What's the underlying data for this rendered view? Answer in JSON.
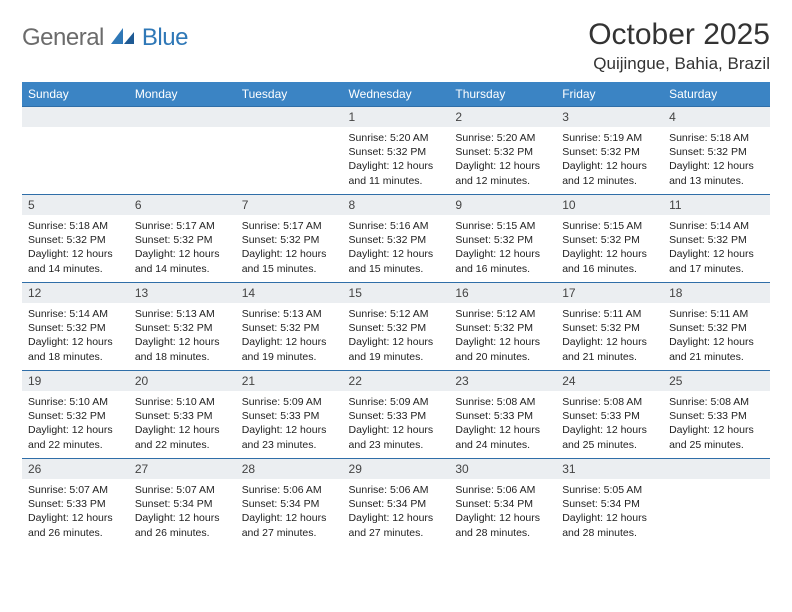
{
  "brand": {
    "word1": "General",
    "word2": "Blue"
  },
  "title": "October 2025",
  "location": "Quijingue, Bahia, Brazil",
  "colors": {
    "header_bg": "#3b84c4",
    "header_fg": "#ffffff",
    "daynum_bg": "#ebeef1",
    "rule": "#2f6ea8",
    "brand_gray": "#6b6b6b",
    "brand_blue": "#2f78b7"
  },
  "weekdays": [
    "Sunday",
    "Monday",
    "Tuesday",
    "Wednesday",
    "Thursday",
    "Friday",
    "Saturday"
  ],
  "weeks": [
    [
      {
        "n": "",
        "sr": "",
        "ss": "",
        "dl": ""
      },
      {
        "n": "",
        "sr": "",
        "ss": "",
        "dl": ""
      },
      {
        "n": "",
        "sr": "",
        "ss": "",
        "dl": ""
      },
      {
        "n": "1",
        "sr": "5:20 AM",
        "ss": "5:32 PM",
        "dl": "12 hours and 11 minutes."
      },
      {
        "n": "2",
        "sr": "5:20 AM",
        "ss": "5:32 PM",
        "dl": "12 hours and 12 minutes."
      },
      {
        "n": "3",
        "sr": "5:19 AM",
        "ss": "5:32 PM",
        "dl": "12 hours and 12 minutes."
      },
      {
        "n": "4",
        "sr": "5:18 AM",
        "ss": "5:32 PM",
        "dl": "12 hours and 13 minutes."
      }
    ],
    [
      {
        "n": "5",
        "sr": "5:18 AM",
        "ss": "5:32 PM",
        "dl": "12 hours and 14 minutes."
      },
      {
        "n": "6",
        "sr": "5:17 AM",
        "ss": "5:32 PM",
        "dl": "12 hours and 14 minutes."
      },
      {
        "n": "7",
        "sr": "5:17 AM",
        "ss": "5:32 PM",
        "dl": "12 hours and 15 minutes."
      },
      {
        "n": "8",
        "sr": "5:16 AM",
        "ss": "5:32 PM",
        "dl": "12 hours and 15 minutes."
      },
      {
        "n": "9",
        "sr": "5:15 AM",
        "ss": "5:32 PM",
        "dl": "12 hours and 16 minutes."
      },
      {
        "n": "10",
        "sr": "5:15 AM",
        "ss": "5:32 PM",
        "dl": "12 hours and 16 minutes."
      },
      {
        "n": "11",
        "sr": "5:14 AM",
        "ss": "5:32 PM",
        "dl": "12 hours and 17 minutes."
      }
    ],
    [
      {
        "n": "12",
        "sr": "5:14 AM",
        "ss": "5:32 PM",
        "dl": "12 hours and 18 minutes."
      },
      {
        "n": "13",
        "sr": "5:13 AM",
        "ss": "5:32 PM",
        "dl": "12 hours and 18 minutes."
      },
      {
        "n": "14",
        "sr": "5:13 AM",
        "ss": "5:32 PM",
        "dl": "12 hours and 19 minutes."
      },
      {
        "n": "15",
        "sr": "5:12 AM",
        "ss": "5:32 PM",
        "dl": "12 hours and 19 minutes."
      },
      {
        "n": "16",
        "sr": "5:12 AM",
        "ss": "5:32 PM",
        "dl": "12 hours and 20 minutes."
      },
      {
        "n": "17",
        "sr": "5:11 AM",
        "ss": "5:32 PM",
        "dl": "12 hours and 21 minutes."
      },
      {
        "n": "18",
        "sr": "5:11 AM",
        "ss": "5:32 PM",
        "dl": "12 hours and 21 minutes."
      }
    ],
    [
      {
        "n": "19",
        "sr": "5:10 AM",
        "ss": "5:32 PM",
        "dl": "12 hours and 22 minutes."
      },
      {
        "n": "20",
        "sr": "5:10 AM",
        "ss": "5:33 PM",
        "dl": "12 hours and 22 minutes."
      },
      {
        "n": "21",
        "sr": "5:09 AM",
        "ss": "5:33 PM",
        "dl": "12 hours and 23 minutes."
      },
      {
        "n": "22",
        "sr": "5:09 AM",
        "ss": "5:33 PM",
        "dl": "12 hours and 23 minutes."
      },
      {
        "n": "23",
        "sr": "5:08 AM",
        "ss": "5:33 PM",
        "dl": "12 hours and 24 minutes."
      },
      {
        "n": "24",
        "sr": "5:08 AM",
        "ss": "5:33 PM",
        "dl": "12 hours and 25 minutes."
      },
      {
        "n": "25",
        "sr": "5:08 AM",
        "ss": "5:33 PM",
        "dl": "12 hours and 25 minutes."
      }
    ],
    [
      {
        "n": "26",
        "sr": "5:07 AM",
        "ss": "5:33 PM",
        "dl": "12 hours and 26 minutes."
      },
      {
        "n": "27",
        "sr": "5:07 AM",
        "ss": "5:34 PM",
        "dl": "12 hours and 26 minutes."
      },
      {
        "n": "28",
        "sr": "5:06 AM",
        "ss": "5:34 PM",
        "dl": "12 hours and 27 minutes."
      },
      {
        "n": "29",
        "sr": "5:06 AM",
        "ss": "5:34 PM",
        "dl": "12 hours and 27 minutes."
      },
      {
        "n": "30",
        "sr": "5:06 AM",
        "ss": "5:34 PM",
        "dl": "12 hours and 28 minutes."
      },
      {
        "n": "31",
        "sr": "5:05 AM",
        "ss": "5:34 PM",
        "dl": "12 hours and 28 minutes."
      },
      {
        "n": "",
        "sr": "",
        "ss": "",
        "dl": ""
      }
    ]
  ],
  "labels": {
    "sunrise": "Sunrise:",
    "sunset": "Sunset:",
    "daylight": "Daylight:"
  }
}
